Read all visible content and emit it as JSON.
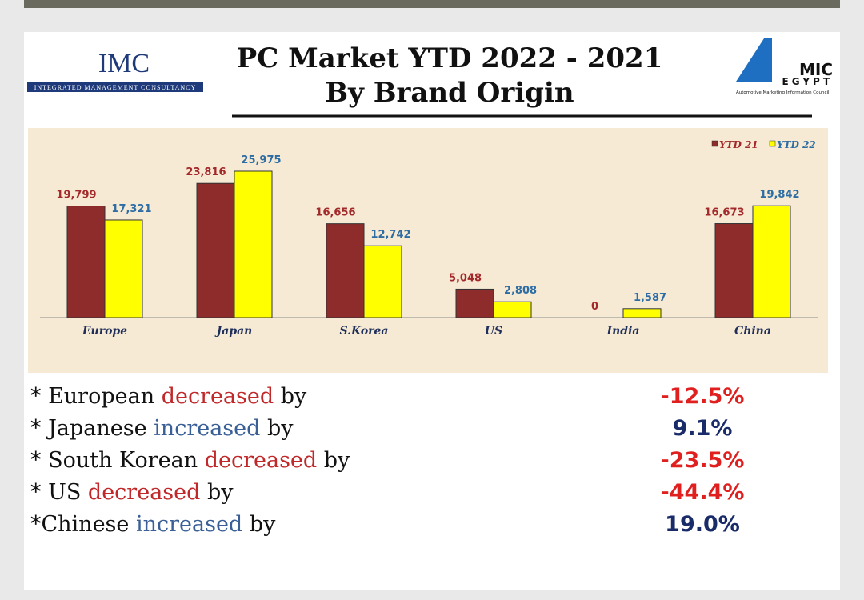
{
  "header": {
    "logo_left": "IMC",
    "logo_left_sub": "Integrated Management Consultancy",
    "logo_right": "MIC",
    "logo_right_sub": "EGYPT",
    "logo_right_caption": "Automotive Marketing Information Council"
  },
  "chart_data": {
    "type": "bar",
    "title": "PC Market YTD 2022 - 2021",
    "subtitle": "By Brand Origin",
    "categories": [
      "Europe",
      "Japan",
      "S.Korea",
      "US",
      "India",
      "China"
    ],
    "series": [
      {
        "name": "YTD 21",
        "color": "#8e2b2b",
        "values": [
          19799,
          23816,
          16656,
          5048,
          0,
          16673
        ],
        "value_labels": [
          "19,799",
          "23,816",
          "16,656",
          "5,048",
          "0",
          "16,673"
        ]
      },
      {
        "name": "YTD 22",
        "color": "#ffff00",
        "values": [
          17321,
          25975,
          12742,
          2808,
          1587,
          19842
        ],
        "value_labels": [
          "17,321",
          "25,975",
          "12,742",
          "2,808",
          "1,587",
          "19,842"
        ]
      }
    ],
    "legend": "top-right"
  },
  "statements": [
    {
      "prefix": "* European ",
      "verb": "decreased",
      "suffix": " by",
      "change": "-12.5%"
    },
    {
      "prefix": "* Japanese ",
      "verb": "increased",
      "suffix": " by",
      "change": "9.1%"
    },
    {
      "prefix": "* South Korean ",
      "verb": "decreased",
      "suffix": " by",
      "change": "-23.5%"
    },
    {
      "prefix": "* US ",
      "verb": "decreased",
      "suffix": " by",
      "change": "-44.4%"
    },
    {
      "prefix": "*Chinese ",
      "verb": "increased",
      "suffix": " by",
      "change": "19.0%"
    }
  ]
}
